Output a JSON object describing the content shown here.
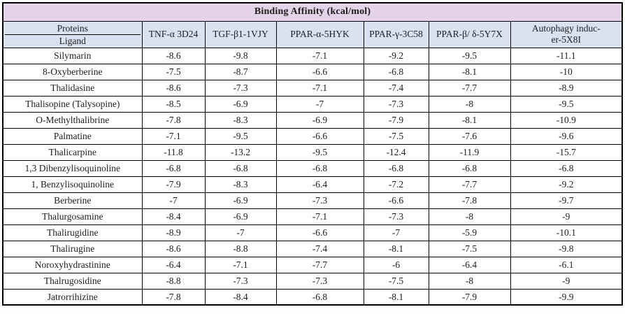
{
  "colors": {
    "title_bg": "#e5d4e9",
    "header_bg": "#d9e2f1",
    "border": "#000000",
    "text": "#1d1d1d",
    "row_bg": "#ffffff"
  },
  "table": {
    "title": "Binding Affinity (kcal/mol)",
    "corner": {
      "top_label": "Proteins",
      "bottom_label": "Ligand"
    },
    "protein_columns": [
      "TNF-α 3D24",
      "TGF-β1-1VJY",
      "PPAR-α-5HYK",
      "PPAR-γ-3C58",
      "PPAR-β/ δ-5Y7X",
      "Autophagy induc-\ner-5X8I"
    ],
    "rows": [
      {
        "ligand": "Silymarin",
        "values": [
          "-8.6",
          "-9.8",
          "-7.1",
          "-9.2",
          "-9.5",
          "-11.1"
        ]
      },
      {
        "ligand": "8-Oxyberberine",
        "values": [
          "-7.5",
          "-8.7",
          "-6.6",
          "-6.8",
          "-8.1",
          "-10"
        ]
      },
      {
        "ligand": "Thalidasine",
        "values": [
          "-8.6",
          "-7.3",
          "-7.1",
          "-7.4",
          "-7.7",
          "-8.9"
        ]
      },
      {
        "ligand": "Thalisopine (Talysopine)",
        "values": [
          "-8.5",
          "-6.9",
          "-7",
          "-7.3",
          "-8",
          "-9.5"
        ]
      },
      {
        "ligand": "O-Methylthalibrine",
        "values": [
          "-7.8",
          "-8.3",
          "-6.9",
          "-7.9",
          "-8.1",
          "-10.9"
        ]
      },
      {
        "ligand": "Palmatine",
        "values": [
          "-7.1",
          "-9.5",
          "-6.6",
          "-7.5",
          "-7.6",
          "-9.6"
        ]
      },
      {
        "ligand": "Thalicarpine",
        "values": [
          "-11.8",
          "-13.2",
          "-9.5",
          "-12.4",
          "-11.9",
          "-15.7"
        ]
      },
      {
        "ligand": "1,3 Dibenzylisoquinoline",
        "values": [
          "-6.8",
          "-6.8",
          "-6.8",
          "-6.8",
          "-6.8",
          "-6.8"
        ]
      },
      {
        "ligand": "1, Benzylisoquinoline",
        "values": [
          "-7.9",
          "-8.3",
          "-6.4",
          "-7.2",
          "-7.7",
          "-9.2"
        ]
      },
      {
        "ligand": "Berberine",
        "values": [
          "-7",
          "-6.9",
          "-7.3",
          "-6.6",
          "-7.8",
          "-9.7"
        ]
      },
      {
        "ligand": "Thalurgosamine",
        "values": [
          "-8.4",
          "-6.9",
          "-7.1",
          "-7.3",
          "-8",
          "-9"
        ]
      },
      {
        "ligand": "Thalirugidine",
        "values": [
          "-8.9",
          "-7",
          "-6.6",
          "-7",
          "-5.9",
          "-10.1"
        ]
      },
      {
        "ligand": "Thalirugine",
        "values": [
          "-8.6",
          "-8.8",
          "-7.4",
          "-8.1",
          "-7.5",
          "-9.8"
        ]
      },
      {
        "ligand": "Noroxyhydrastinine",
        "values": [
          "-6.4",
          "-7.1",
          "-7.7",
          "-6",
          "-6.4",
          "-6.1"
        ]
      },
      {
        "ligand": "Thalrugosidine",
        "values": [
          "-8.8",
          "-7.3",
          "-7.3",
          "-7.5",
          "-8",
          "-9"
        ]
      },
      {
        "ligand": "Jatrorrihizine",
        "values": [
          "-7.8",
          "-8.4",
          "-6.8",
          "-8.1",
          "-7.9",
          "-9.9"
        ]
      }
    ]
  }
}
